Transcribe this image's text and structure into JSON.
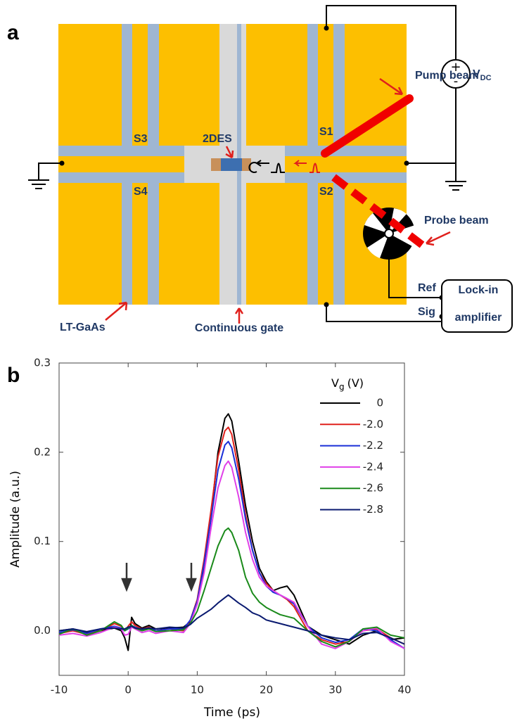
{
  "figure_a": {
    "panel_label": "a",
    "switches": [
      "S1",
      "S2",
      "S3",
      "S4"
    ],
    "device": "2DES",
    "pump": "Pump beam",
    "probe": "Probe beam",
    "source": {
      "polarity": [
        "+",
        "-"
      ],
      "symbol": "V",
      "subscript": "DC"
    },
    "substrate": "LT-GaAs",
    "gate": "Continuous gate",
    "lockin_inputs": [
      "Ref",
      "Sig"
    ],
    "lockin": [
      "Lock-in",
      "amplifier"
    ]
  },
  "chart_data": {
    "type": "line",
    "panel_label": "b",
    "x_label": "Time (ps)",
    "y_label": "Amplitude (a.u.)",
    "legend_title": {
      "symbol": "V",
      "subscript": "g",
      "unit": "(V)"
    },
    "legend": "top-right",
    "xlim": [
      -10,
      40
    ],
    "xticks": [
      -10,
      0,
      10,
      20,
      30,
      40
    ],
    "ylim": [
      -0.05,
      0.3
    ],
    "yticks": [
      {
        "value": 0,
        "label": "0.0"
      },
      0.1,
      0.2,
      0.3
    ],
    "x": [
      -10,
      -8,
      -6,
      -4,
      -2,
      -1,
      -0.5,
      0,
      0.5,
      1,
      2,
      3,
      4,
      6,
      8,
      9,
      10,
      11,
      12,
      13,
      14,
      14.5,
      15,
      16,
      17,
      18,
      19,
      20,
      21,
      22,
      23,
      24,
      26,
      28,
      30,
      32,
      34,
      36,
      38,
      40
    ],
    "series": [
      {
        "name": "0",
        "color": "#000000",
        "values": [
          0.0,
          0.002,
          -0.002,
          0.0,
          0.003,
          0.0,
          -0.008,
          -0.022,
          0.015,
          0.008,
          0.003,
          0.006,
          0.002,
          0.003,
          0.004,
          0.01,
          0.03,
          0.07,
          0.13,
          0.2,
          0.238,
          0.243,
          0.235,
          0.19,
          0.14,
          0.1,
          0.07,
          0.055,
          0.045,
          0.048,
          0.05,
          0.04,
          0.005,
          -0.005,
          -0.01,
          -0.015,
          -0.005,
          0.0,
          -0.01,
          -0.008
        ]
      },
      {
        "name": "-2.0",
        "color": "#e0201c",
        "values": [
          -0.003,
          0.0,
          -0.004,
          0.0,
          0.008,
          0.005,
          0.0,
          0.005,
          0.01,
          0.006,
          0.002,
          0.004,
          0.0,
          0.002,
          0.0,
          0.012,
          0.035,
          0.08,
          0.135,
          0.195,
          0.224,
          0.228,
          0.22,
          0.18,
          0.13,
          0.09,
          0.065,
          0.053,
          0.045,
          0.04,
          0.035,
          0.027,
          0.0,
          -0.01,
          -0.015,
          -0.012,
          0.0,
          0.002,
          -0.008,
          -0.015
        ]
      },
      {
        "name": "-2.2",
        "color": "#1a2fd8",
        "values": [
          -0.002,
          0.001,
          -0.003,
          0.002,
          0.005,
          0.003,
          0.0,
          0.002,
          0.006,
          0.004,
          0.001,
          0.003,
          0.0,
          0.002,
          0.002,
          0.012,
          0.033,
          0.075,
          0.125,
          0.18,
          0.208,
          0.212,
          0.205,
          0.17,
          0.125,
          0.09,
          0.065,
          0.05,
          0.043,
          0.04,
          0.036,
          0.03,
          0.005,
          -0.008,
          -0.013,
          -0.01,
          0.002,
          0.0,
          -0.01,
          -0.02
        ]
      },
      {
        "name": "-2.4",
        "color": "#e040e8",
        "values": [
          -0.005,
          -0.003,
          -0.006,
          -0.002,
          0.004,
          0.002,
          -0.005,
          -0.004,
          0.004,
          0.002,
          -0.002,
          0.0,
          -0.003,
          0.0,
          -0.002,
          0.008,
          0.03,
          0.065,
          0.115,
          0.16,
          0.185,
          0.19,
          0.183,
          0.15,
          0.11,
          0.08,
          0.06,
          0.05,
          0.045,
          0.04,
          0.036,
          0.032,
          0.005,
          -0.015,
          -0.02,
          -0.012,
          0.0,
          0.003,
          -0.012,
          -0.02
        ]
      },
      {
        "name": "-2.6",
        "color": "#1a8a1a",
        "values": [
          -0.004,
          0.002,
          -0.005,
          0.0,
          0.01,
          0.006,
          0.0,
          0.003,
          0.006,
          0.003,
          0.0,
          0.002,
          -0.001,
          0.0,
          0.001,
          0.008,
          0.022,
          0.045,
          0.07,
          0.095,
          0.112,
          0.115,
          0.11,
          0.09,
          0.06,
          0.042,
          0.032,
          0.026,
          0.022,
          0.018,
          0.016,
          0.014,
          0.0,
          -0.012,
          -0.018,
          -0.012,
          0.002,
          0.004,
          -0.005,
          -0.008
        ]
      },
      {
        "name": "-2.8",
        "color": "#0a1a70",
        "values": [
          0.0,
          0.002,
          -0.001,
          0.002,
          0.003,
          0.002,
          0.002,
          0.004,
          0.005,
          0.003,
          0.002,
          0.003,
          0.002,
          0.004,
          0.003,
          0.007,
          0.014,
          0.019,
          0.024,
          0.031,
          0.037,
          0.04,
          0.037,
          0.031,
          0.026,
          0.02,
          0.017,
          0.012,
          0.01,
          0.008,
          0.006,
          0.004,
          0.0,
          -0.005,
          -0.008,
          -0.01,
          -0.003,
          -0.002,
          -0.008,
          -0.015
        ]
      }
    ]
  }
}
